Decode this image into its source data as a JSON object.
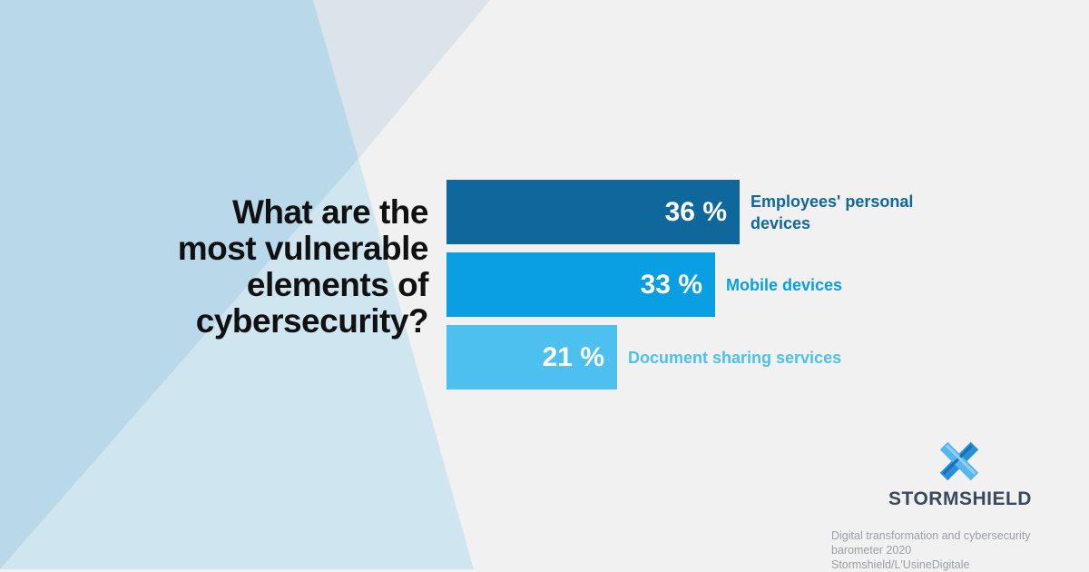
{
  "colors": {
    "background": "#f1f1f1",
    "tri_light": "#cfe5f0",
    "tri_mid": "#b9d8e9",
    "tri_grey": "#dce4eb",
    "bars": [
      "#10679c",
      "#0a9fe2",
      "#4dc0f0"
    ],
    "labels": [
      "#10679c",
      "#0a9fe2",
      "#4dc0f0"
    ]
  },
  "title": {
    "lines": [
      "What are the",
      "most vulnerable",
      "elements of",
      "cybersecurity?"
    ]
  },
  "chart_data": {
    "type": "bar",
    "orientation": "horizontal",
    "title": "What are the most vulnerable elements of cybersecurity?",
    "categories": [
      "Employees' personal devices",
      "Mobile devices",
      "Document sharing services"
    ],
    "values": [
      36,
      33,
      21
    ],
    "value_labels": [
      "36 %",
      "33 %",
      "21 %"
    ],
    "category_lines": [
      [
        "Employees' personal",
        "devices"
      ],
      [
        "Mobile devices"
      ],
      [
        "Document sharing services"
      ]
    ],
    "grid": false,
    "legend": "none"
  },
  "brand": {
    "name": "STORMSHIELD",
    "logo_icon": "stormshield-logo-icon"
  },
  "source": {
    "lines": [
      "Digital transformation and cybersecurity",
      "barometer 2020 Stormshield/L'UsineDigitale"
    ]
  }
}
